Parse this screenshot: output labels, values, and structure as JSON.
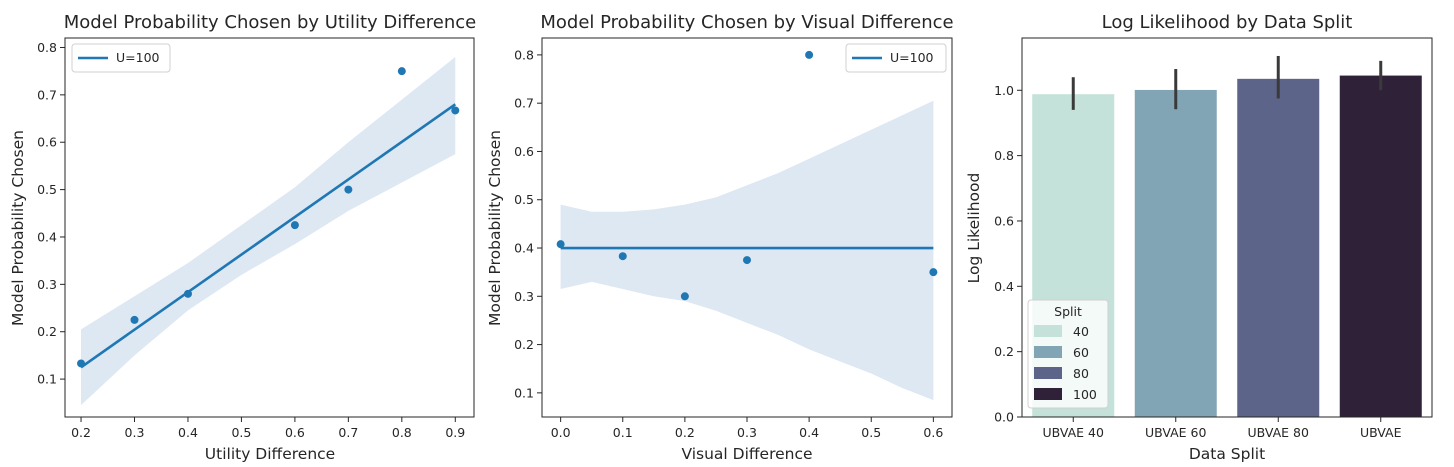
{
  "colors": {
    "blue": "#1f77b4",
    "band": "#dde8f3",
    "errbar": "#3a3a3a",
    "splits": [
      "#c4e2d9",
      "#82a5b5",
      "#5c6489",
      "#2e2138"
    ]
  },
  "chart_data": [
    {
      "type": "scatter",
      "title": "Model Probability Chosen by Utility Difference",
      "xlabel": "Utility Difference",
      "ylabel": "Model Probability Chosen",
      "xlim": [
        0.17,
        0.935
      ],
      "ylim": [
        0.02,
        0.82
      ],
      "xticks": [
        0.2,
        0.3,
        0.4,
        0.5,
        0.6,
        0.7,
        0.8,
        0.9
      ],
      "yticks": [
        0.1,
        0.2,
        0.3,
        0.4,
        0.5,
        0.6,
        0.7,
        0.8
      ],
      "points": [
        [
          0.2,
          0.133
        ],
        [
          0.3,
          0.225
        ],
        [
          0.4,
          0.28
        ],
        [
          0.6,
          0.425
        ],
        [
          0.7,
          0.5
        ],
        [
          0.8,
          0.75
        ],
        [
          0.9,
          0.667
        ]
      ],
      "fit_line": [
        [
          0.2,
          0.125
        ],
        [
          0.9,
          0.68
        ]
      ],
      "ci_band": [
        [
          0.2,
          0.045,
          0.205
        ],
        [
          0.3,
          0.15,
          0.275
        ],
        [
          0.4,
          0.245,
          0.345
        ],
        [
          0.5,
          0.32,
          0.425
        ],
        [
          0.6,
          0.385,
          0.505
        ],
        [
          0.7,
          0.455,
          0.6
        ],
        [
          0.8,
          0.515,
          0.69
        ],
        [
          0.9,
          0.575,
          0.78
        ]
      ],
      "legend": {
        "label": "U=100",
        "loc": "upper left"
      },
      "grid": false
    },
    {
      "type": "scatter",
      "title": "Model Probability Chosen by Visual Difference",
      "xlabel": "Visual Difference",
      "ylabel": "Model Probability Chosen",
      "xlim": [
        -0.03,
        0.63
      ],
      "ylim": [
        0.05,
        0.835
      ],
      "xticks": [
        0.0,
        0.1,
        0.2,
        0.3,
        0.4,
        0.5,
        0.6
      ],
      "yticks": [
        0.1,
        0.2,
        0.3,
        0.4,
        0.5,
        0.6,
        0.7,
        0.8
      ],
      "points": [
        [
          0.0,
          0.408
        ],
        [
          0.1,
          0.383
        ],
        [
          0.2,
          0.3
        ],
        [
          0.3,
          0.375
        ],
        [
          0.4,
          0.8
        ],
        [
          0.6,
          0.35
        ]
      ],
      "fit_line": [
        [
          0.0,
          0.4
        ],
        [
          0.6,
          0.4
        ]
      ],
      "ci_band": [
        [
          0.0,
          0.315,
          0.49
        ],
        [
          0.05,
          0.33,
          0.475
        ],
        [
          0.1,
          0.315,
          0.475
        ],
        [
          0.15,
          0.3,
          0.48
        ],
        [
          0.2,
          0.29,
          0.49
        ],
        [
          0.25,
          0.27,
          0.505
        ],
        [
          0.3,
          0.245,
          0.53
        ],
        [
          0.35,
          0.22,
          0.555
        ],
        [
          0.4,
          0.19,
          0.585
        ],
        [
          0.45,
          0.165,
          0.615
        ],
        [
          0.5,
          0.14,
          0.645
        ],
        [
          0.55,
          0.11,
          0.675
        ],
        [
          0.6,
          0.085,
          0.705
        ]
      ],
      "legend": {
        "label": "U=100",
        "loc": "upper right"
      },
      "grid": false
    },
    {
      "type": "bar",
      "title": "Log Likelihood by Data Split",
      "xlabel": "Data Split",
      "ylabel": "Log Likelihood",
      "categories": [
        "UBVAE 40",
        "UBVAE 60",
        "UBVAE 80",
        "UBVAE"
      ],
      "values": [
        0.988,
        1.001,
        1.035,
        1.045
      ],
      "error": [
        [
          0.94,
          1.04
        ],
        [
          0.942,
          1.065
        ],
        [
          0.975,
          1.105
        ],
        [
          1.0,
          1.09
        ]
      ],
      "ylim": [
        0,
        1.16
      ],
      "yticks": [
        0.0,
        0.2,
        0.4,
        0.6,
        0.8,
        1.0
      ],
      "legend": {
        "title": "Split",
        "labels": [
          "40",
          "60",
          "80",
          "100"
        ],
        "loc": "lower left"
      },
      "grid": false
    }
  ]
}
